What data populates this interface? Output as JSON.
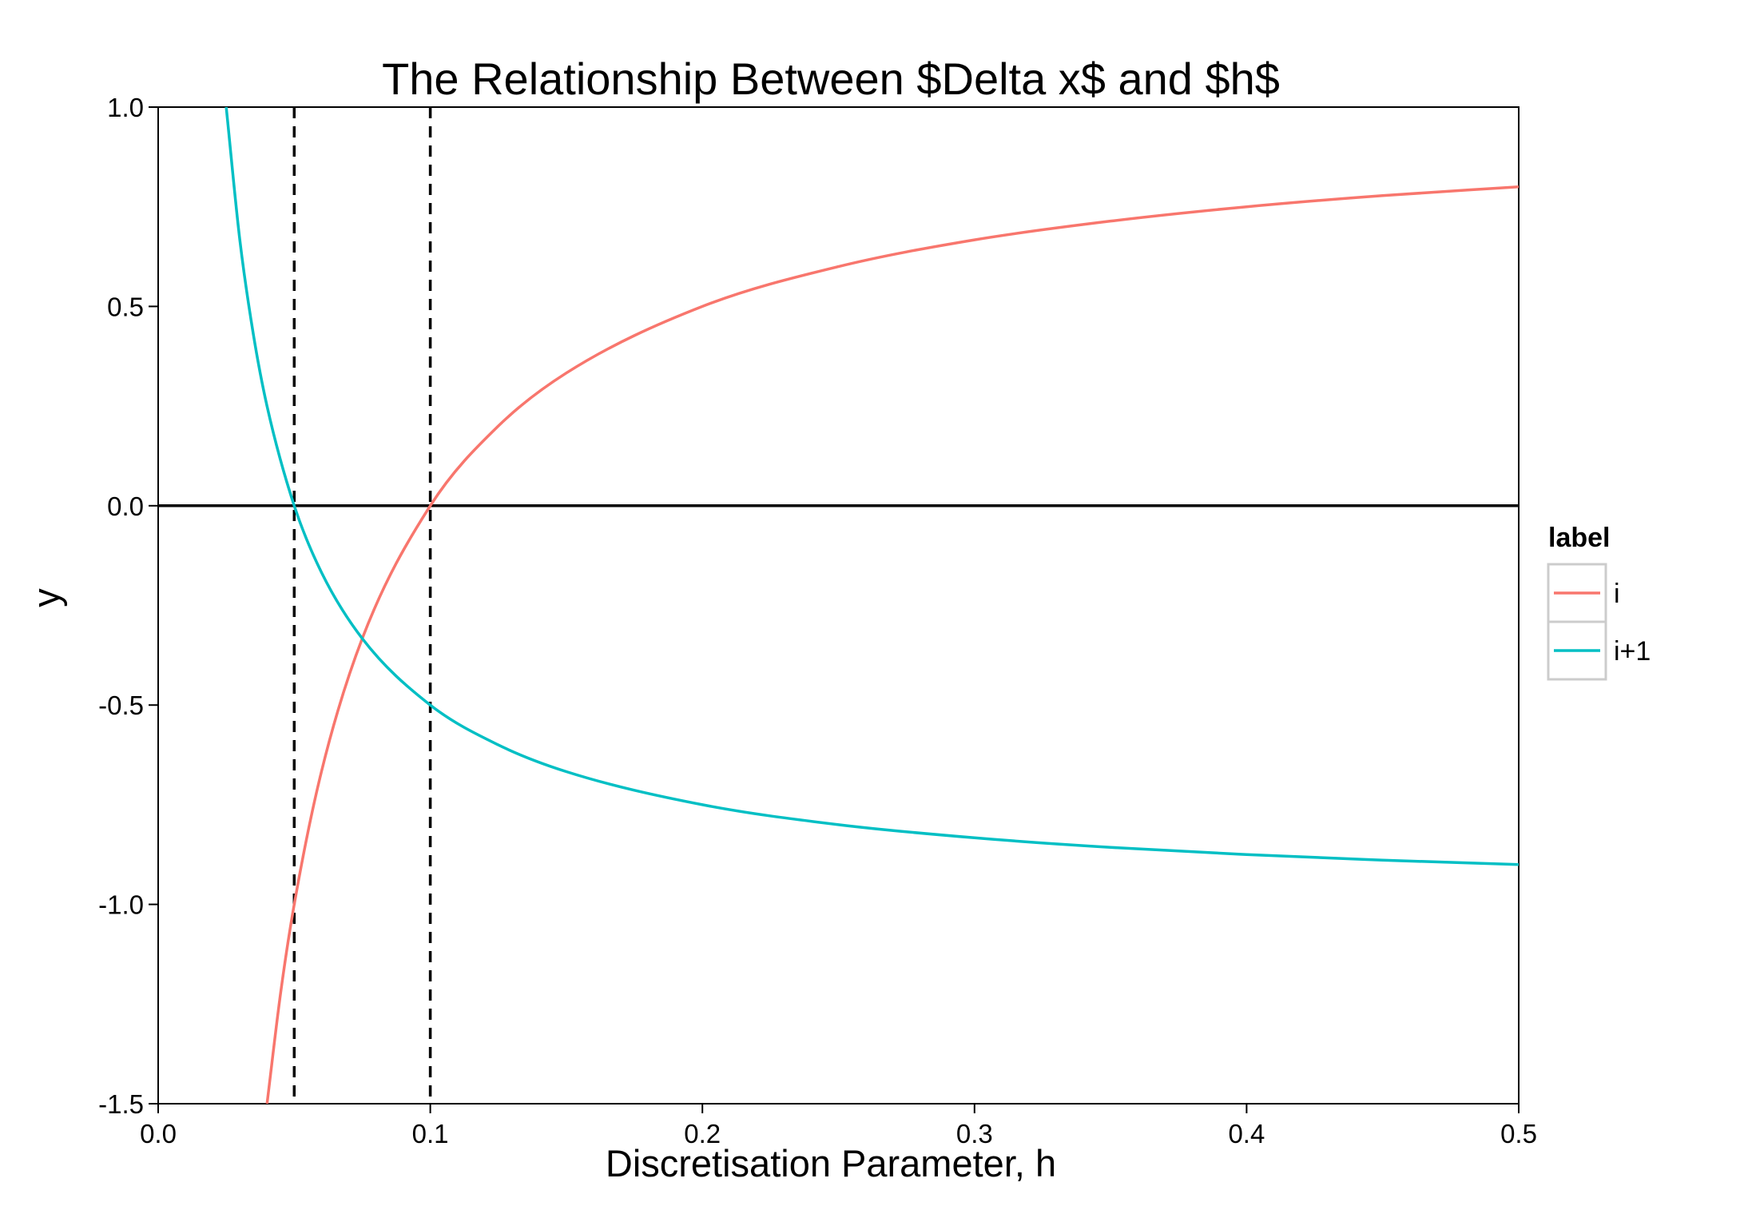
{
  "chart_data": {
    "type": "line",
    "title": "The Relationship Between $Delta x$ and $h$",
    "xlabel": "Discretisation Parameter, h",
    "ylabel": "y",
    "xlim": [
      0,
      0.5
    ],
    "ylim": [
      -1.5,
      1.0
    ],
    "xticks": [
      0.0,
      0.1,
      0.2,
      0.3,
      0.4,
      0.5
    ],
    "xtick_labels": [
      "0.0",
      "0.1",
      "0.2",
      "0.3",
      "0.4",
      "0.5"
    ],
    "yticks": [
      1.0,
      0.5,
      0.0,
      -0.5,
      -1.0,
      -1.5
    ],
    "ytick_labels": [
      "1.0",
      "0.5",
      "0.0",
      "-0.5",
      "-1.0",
      "-1.5"
    ],
    "grid": false,
    "legend": {
      "title": "label",
      "position": "right"
    },
    "series": [
      {
        "name": "i",
        "color": "#F8766D",
        "x": [
          0.04,
          0.045,
          0.05,
          0.06,
          0.075,
          0.1,
          0.125,
          0.15,
          0.2,
          0.25,
          0.3,
          0.35,
          0.4,
          0.45,
          0.5
        ],
        "y": [
          -1.5,
          -1.222,
          -1.0,
          -0.667,
          -0.333,
          0.0,
          0.2,
          0.333,
          0.5,
          0.6,
          0.667,
          0.714,
          0.75,
          0.778,
          0.8
        ]
      },
      {
        "name": "i+1",
        "color": "#00BFC4",
        "x": [
          0.025,
          0.03,
          0.035,
          0.04,
          0.05,
          0.06,
          0.075,
          0.1,
          0.125,
          0.15,
          0.2,
          0.25,
          0.3,
          0.35,
          0.4,
          0.45,
          0.5
        ],
        "y": [
          1.0,
          0.667,
          0.429,
          0.25,
          0.0,
          -0.167,
          -0.333,
          -0.5,
          -0.6,
          -0.667,
          -0.75,
          -0.8,
          -0.833,
          -0.857,
          -0.875,
          -0.889,
          -0.9
        ]
      }
    ],
    "reference_lines": {
      "horizontal": [
        {
          "y": 0.0,
          "style": "solid",
          "color": "#000000"
        }
      ],
      "vertical": [
        {
          "x": 0.05,
          "style": "dashed",
          "color": "#000000"
        },
        {
          "x": 0.1,
          "style": "dashed",
          "color": "#000000"
        }
      ]
    }
  }
}
